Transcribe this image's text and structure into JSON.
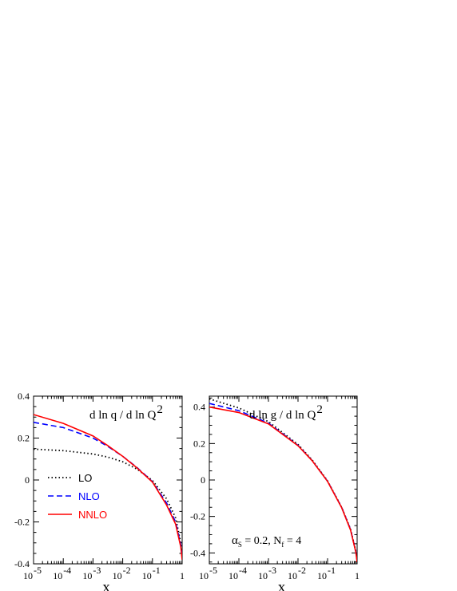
{
  "chart_data": [
    {
      "type": "line",
      "title": "d ln q / d ln Q",
      "title_sup": "2",
      "xlabel": "x",
      "x_scale": "log",
      "xlim": [
        1e-05,
        1
      ],
      "ylim": [
        -0.4,
        0.4
      ],
      "x_ticks": [
        {
          "base": "10",
          "exp": "-5"
        },
        {
          "base": "10",
          "exp": "-4"
        },
        {
          "base": "10",
          "exp": "-3"
        },
        {
          "base": "10",
          "exp": "-2"
        },
        {
          "base": "10",
          "exp": "-1"
        },
        {
          "base": "1",
          "exp": ""
        }
      ],
      "y_ticks": [
        "0.4",
        "0.2",
        "0",
        "-0.2",
        "-0.4"
      ],
      "legend": [
        {
          "label": "LO",
          "color": "#000000",
          "style": "dotted"
        },
        {
          "label": "NLO",
          "color": "#0000ff",
          "style": "dashed"
        },
        {
          "label": "NNLO",
          "color": "#ff0000",
          "style": "solid"
        }
      ],
      "series": [
        {
          "name": "LO",
          "color": "#000000",
          "style": "dotted",
          "x": [
            1e-05,
            0.0001,
            0.001,
            0.003,
            0.01,
            0.03,
            0.1,
            0.3,
            0.6,
            0.9,
            1.0
          ],
          "y": [
            0.147,
            0.14,
            0.124,
            0.11,
            0.087,
            0.052,
            -0.002,
            -0.09,
            -0.18,
            -0.3,
            -0.36
          ]
        },
        {
          "name": "NLO",
          "color": "#0000ff",
          "style": "dashed",
          "x": [
            1e-05,
            0.0001,
            0.001,
            0.003,
            0.01,
            0.03,
            0.1,
            0.3,
            0.6,
            0.9,
            1.0
          ],
          "y": [
            0.275,
            0.25,
            0.2,
            0.162,
            0.113,
            0.06,
            -0.008,
            -0.11,
            -0.2,
            -0.31,
            -0.37
          ]
        },
        {
          "name": "NNLO",
          "color": "#ff0000",
          "style": "solid",
          "x": [
            1e-05,
            0.0001,
            0.001,
            0.003,
            0.01,
            0.03,
            0.1,
            0.3,
            0.6,
            0.9,
            1.0
          ],
          "y": [
            0.312,
            0.27,
            0.21,
            0.166,
            0.113,
            0.058,
            -0.01,
            -0.12,
            -0.21,
            -0.32,
            -0.38
          ]
        }
      ]
    },
    {
      "type": "line",
      "title": "d ln g / d ln Q",
      "title_sup": "2",
      "xlabel": "x",
      "x_scale": "log",
      "xlim": [
        1e-05,
        1
      ],
      "ylim": [
        -0.46,
        0.46
      ],
      "x_ticks": [
        {
          "base": "10",
          "exp": "-5"
        },
        {
          "base": "10",
          "exp": "-4"
        },
        {
          "base": "10",
          "exp": "-3"
        },
        {
          "base": "10",
          "exp": "-2"
        },
        {
          "base": "10",
          "exp": "-1"
        },
        {
          "base": "1",
          "exp": ""
        }
      ],
      "y_ticks": [
        "0.4",
        "0.2",
        "0",
        "-0.2",
        "-0.4"
      ],
      "annotation": {
        "alpha": "α",
        "alpha_sub": "S",
        "alpha_rest": " = 0.2,  N",
        "nf_sub": "f",
        "nf_rest": " = 4"
      },
      "series": [
        {
          "name": "LO",
          "color": "#000000",
          "style": "dotted",
          "x": [
            1e-05,
            0.0001,
            0.001,
            0.01,
            0.03,
            0.1,
            0.3,
            0.6,
            0.9,
            1.0
          ],
          "y": [
            0.445,
            0.395,
            0.32,
            0.195,
            0.11,
            -0.005,
            -0.15,
            -0.27,
            -0.39,
            -0.44
          ]
        },
        {
          "name": "NLO",
          "color": "#0000ff",
          "style": "dashed",
          "x": [
            1e-05,
            0.0001,
            0.001,
            0.01,
            0.03,
            0.1,
            0.3,
            0.6,
            0.9,
            1.0
          ],
          "y": [
            0.42,
            0.38,
            0.312,
            0.19,
            0.107,
            -0.007,
            -0.15,
            -0.272,
            -0.392,
            -0.445
          ]
        },
        {
          "name": "NNLO",
          "color": "#ff0000",
          "style": "solid",
          "x": [
            1e-05,
            0.0001,
            0.001,
            0.01,
            0.03,
            0.1,
            0.3,
            0.6,
            0.9,
            1.0
          ],
          "y": [
            0.4,
            0.37,
            0.308,
            0.188,
            0.106,
            -0.008,
            -0.152,
            -0.275,
            -0.395,
            -0.45
          ]
        }
      ]
    }
  ]
}
